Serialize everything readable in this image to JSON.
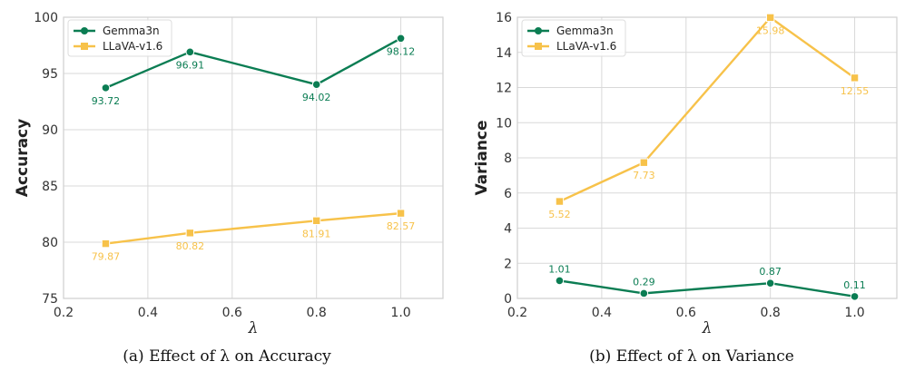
{
  "colors": {
    "gemma": "#0b7d53",
    "llava": "#f7c24a",
    "grid": "#d9d9d9",
    "frame": "#cfcfcf"
  },
  "chart_data": [
    {
      "type": "line",
      "id": "a",
      "x": [
        0.3,
        0.5,
        0.8,
        1.0
      ],
      "xlim": [
        0.2,
        1.1
      ],
      "xticks": [
        "0.2",
        "0.4",
        "0.6",
        "0.8",
        "1.0"
      ],
      "xticks_values": [
        0.2,
        0.4,
        0.6,
        0.8,
        1.0
      ],
      "ylim": [
        75,
        100
      ],
      "yticks": [
        "75",
        "80",
        "85",
        "90",
        "95",
        "100"
      ],
      "yticks_values": [
        75,
        80,
        85,
        90,
        95,
        100
      ],
      "xlabel": "λ",
      "ylabel": "Accuracy",
      "grid": true,
      "legend_position": "top-left",
      "caption": "(a) Effect of λ on Accuracy",
      "series": [
        {
          "name": "Gemma3n",
          "marker": "circle",
          "values": [
            93.72,
            96.91,
            94.02,
            98.12
          ],
          "labels": [
            "93.72",
            "96.91",
            "94.02",
            "98.12"
          ],
          "label_side": "below"
        },
        {
          "name": "LLaVA-v1.6",
          "marker": "square",
          "values": [
            79.87,
            80.82,
            81.91,
            82.57
          ],
          "labels": [
            "79.87",
            "80.82",
            "81.91",
            "82.57"
          ],
          "label_side": "below"
        }
      ]
    },
    {
      "type": "line",
      "id": "b",
      "x": [
        0.3,
        0.5,
        0.8,
        1.0
      ],
      "xlim": [
        0.2,
        1.1
      ],
      "xticks": [
        "0.2",
        "0.4",
        "0.6",
        "0.8",
        "1.0"
      ],
      "xticks_values": [
        0.2,
        0.4,
        0.6,
        0.8,
        1.0
      ],
      "ylim": [
        0,
        16
      ],
      "yticks": [
        "0",
        "2",
        "4",
        "6",
        "8",
        "10",
        "12",
        "14",
        "16"
      ],
      "yticks_values": [
        0,
        2,
        4,
        6,
        8,
        10,
        12,
        14,
        16
      ],
      "xlabel": "λ",
      "ylabel": "Variance",
      "grid": true,
      "legend_position": "top-left",
      "caption": "(b) Effect of λ on Variance",
      "series": [
        {
          "name": "Gemma3n",
          "marker": "circle",
          "values": [
            1.01,
            0.29,
            0.87,
            0.11
          ],
          "labels": [
            "1.01",
            "0.29",
            "0.87",
            "0.11"
          ],
          "label_side": "above"
        },
        {
          "name": "LLaVA-v1.6",
          "marker": "square",
          "values": [
            5.52,
            7.73,
            15.98,
            12.55
          ],
          "labels": [
            "5.52",
            "7.73",
            "15.98",
            "12.55"
          ],
          "label_side": "below"
        }
      ]
    }
  ]
}
